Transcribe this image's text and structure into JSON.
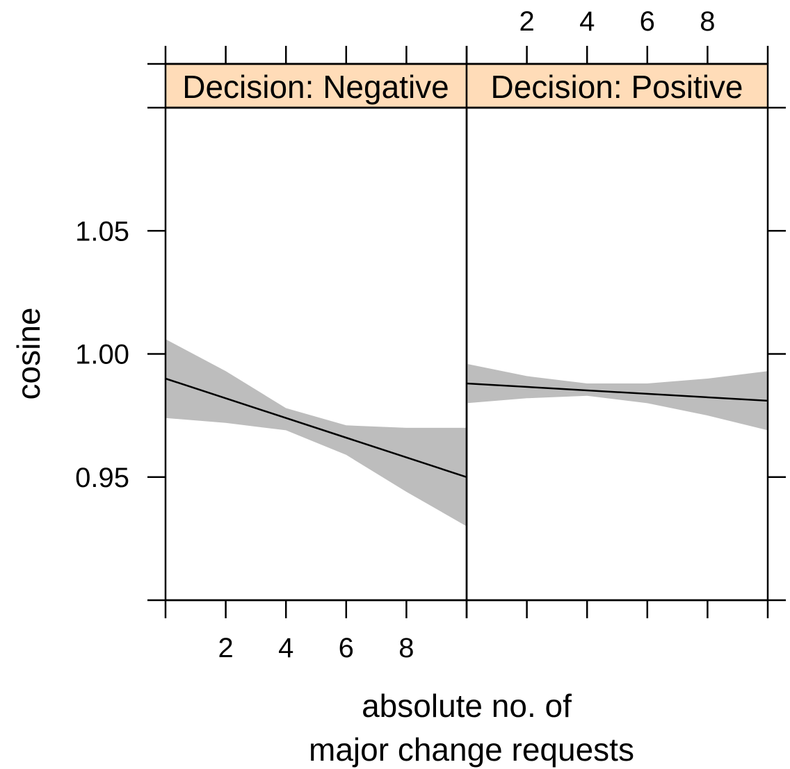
{
  "chart_data": {
    "type": "line",
    "layout": "two-panel trellis",
    "xlabel": [
      "absolute no. of",
      "major change requests"
    ],
    "ylabel": "cosine",
    "x_range": [
      0,
      10
    ],
    "y_range": [
      0.9,
      1.1
    ],
    "x_ticks": [
      2,
      4,
      6,
      8
    ],
    "y_ticks": [
      0.95,
      1.0,
      1.05
    ],
    "y_tick_labels": [
      "0.95",
      "1.00",
      "1.05"
    ],
    "x_tick_labels": [
      "2",
      "4",
      "6",
      "8"
    ],
    "strip_color": "#ffdcb8",
    "band_color": "#bdbdbd",
    "panels": [
      {
        "strip": "Decision: Negative",
        "fit": {
          "x": [
            0,
            10
          ],
          "y": [
            0.99,
            0.95
          ]
        },
        "band": {
          "x": [
            0,
            2,
            4,
            6,
            8,
            10
          ],
          "upper": [
            1.006,
            0.993,
            0.978,
            0.971,
            0.97,
            0.97
          ],
          "lower": [
            0.974,
            0.972,
            0.969,
            0.959,
            0.944,
            0.93
          ]
        }
      },
      {
        "strip": "Decision: Positive",
        "fit": {
          "x": [
            0,
            10
          ],
          "y": [
            0.988,
            0.981
          ]
        },
        "band": {
          "x": [
            0,
            2,
            4,
            6,
            8,
            10
          ],
          "upper": [
            0.996,
            0.991,
            0.988,
            0.988,
            0.99,
            0.993
          ],
          "lower": [
            0.98,
            0.982,
            0.983,
            0.98,
            0.975,
            0.969
          ]
        }
      }
    ]
  }
}
